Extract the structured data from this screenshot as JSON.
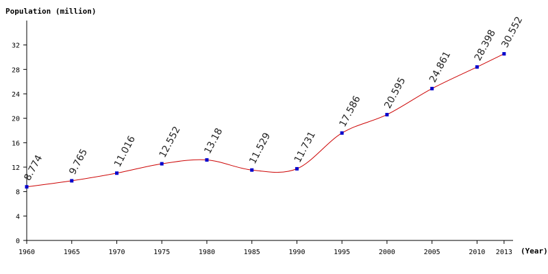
{
  "chart_data": {
    "type": "line",
    "ylabel": "Population (million)",
    "xlabel": "(Year)",
    "x": [
      1960,
      1965,
      1970,
      1975,
      1980,
      1985,
      1990,
      1995,
      2000,
      2005,
      2010,
      2013
    ],
    "series": [
      {
        "name": "Population",
        "color": "#cc0000",
        "marker_color": "#0000cc",
        "values": [
          8.774,
          9.765,
          11.016,
          12.552,
          13.18,
          11.529,
          11.731,
          17.586,
          20.595,
          24.861,
          28.398,
          30.552
        ]
      }
    ],
    "xlim": [
      1960,
      2014
    ],
    "xticks": [
      1960,
      1965,
      1970,
      1975,
      1980,
      1985,
      1990,
      1995,
      2000,
      2005,
      2010,
      2013
    ],
    "ylim": [
      0,
      36
    ],
    "yticks": [
      0,
      4,
      8,
      12,
      16,
      20,
      24,
      28,
      32
    ],
    "grid": false
  }
}
